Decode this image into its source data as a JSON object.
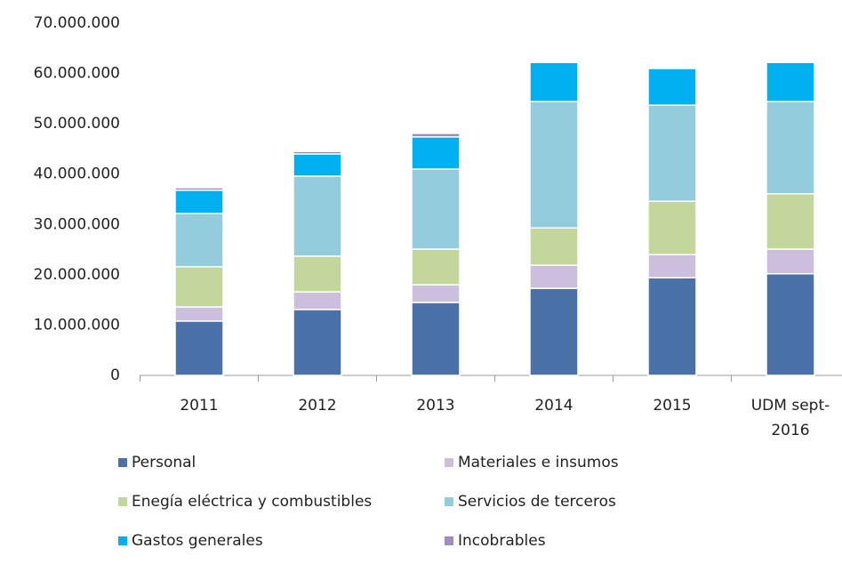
{
  "chart_data": {
    "type": "stacked_bar",
    "categories": [
      "2011",
      "2012",
      "2013",
      "2014",
      "2015",
      "UDM sept-2016"
    ],
    "series": [
      {
        "name": "Personal",
        "color": "#4a72a8",
        "values": [
          10800000,
          13100000,
          14500000,
          17300000,
          19400000,
          20200000
        ]
      },
      {
        "name": "Materiales e insumos",
        "color": "#cbbfdd",
        "values": [
          2800000,
          3500000,
          3500000,
          4600000,
          4600000,
          4900000
        ]
      },
      {
        "name": "Enegía eléctrica y combustibles",
        "color": "#c3d69b",
        "values": [
          8000000,
          7100000,
          7100000,
          7400000,
          10600000,
          11000000
        ]
      },
      {
        "name": "Servicios de terceros",
        "color": "#93cddd",
        "values": [
          10600000,
          15900000,
          15900000,
          25100000,
          19100000,
          18300000
        ]
      },
      {
        "name": "Gastos generales",
        "color": "#00b0f0",
        "values": [
          4600000,
          4400000,
          6400000,
          7800000,
          7300000,
          7800000
        ]
      },
      {
        "name": "Incobrables",
        "color": "#a08cc0",
        "values": [
          500000,
          500000,
          700000,
          100000,
          100000,
          100000
        ]
      }
    ],
    "ylim": [
      0,
      70000000
    ],
    "yticks": [
      0,
      {
        "value": 10000000,
        "label": "10.000.000"
      },
      {
        "value": 20000000,
        "label": "20.000.000"
      },
      {
        "value": 30000000,
        "label": "30.000.000"
      },
      {
        "value": 40000000,
        "label": "40.000.000"
      },
      {
        "value": 50000000,
        "label": "50.000.000"
      },
      {
        "value": 60000000,
        "label": "60.000.000"
      },
      {
        "value": 70000000,
        "label": "70.000.000"
      }
    ],
    "legend": "bottom"
  }
}
